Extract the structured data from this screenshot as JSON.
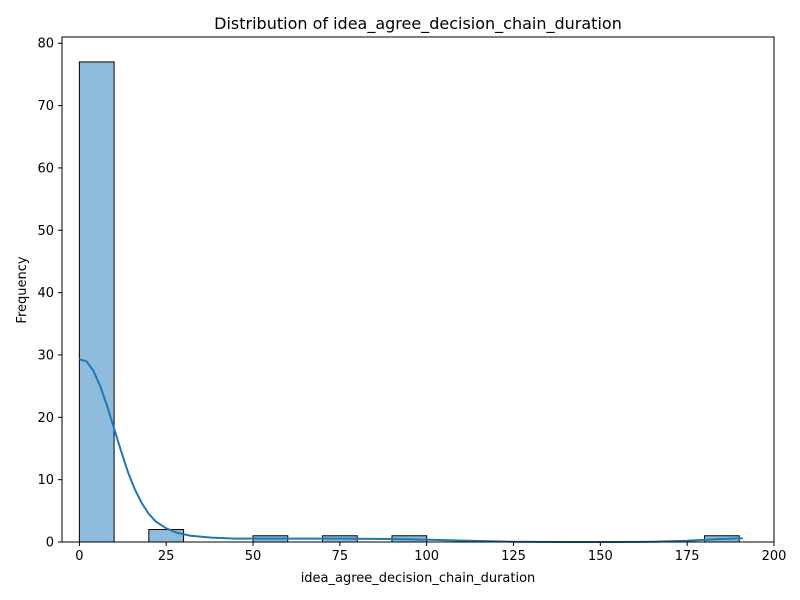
{
  "chart_data": {
    "type": "histogram",
    "title": "Distribution of idea_agree_decision_chain_duration",
    "xlabel": "idea_agree_decision_chain_duration",
    "ylabel": "Frequency",
    "xlim": [
      -5,
      200
    ],
    "ylim": [
      0,
      81
    ],
    "xticks": [
      0,
      25,
      50,
      75,
      100,
      125,
      150,
      175,
      200
    ],
    "yticks": [
      0,
      10,
      20,
      30,
      40,
      50,
      60,
      70,
      80
    ],
    "bins": [
      {
        "start": 0,
        "end": 10,
        "count": 77
      },
      {
        "start": 20,
        "end": 30,
        "count": 2
      },
      {
        "start": 50,
        "end": 60,
        "count": 1
      },
      {
        "start": 70,
        "end": 80,
        "count": 1
      },
      {
        "start": 90,
        "end": 100,
        "count": 1
      },
      {
        "start": 180,
        "end": 190,
        "count": 1
      }
    ],
    "kde": [
      [
        0,
        29.3
      ],
      [
        2,
        29.0
      ],
      [
        4,
        27.5
      ],
      [
        6,
        25.0
      ],
      [
        8,
        21.8
      ],
      [
        10,
        18.2
      ],
      [
        12,
        14.6
      ],
      [
        14,
        11.2
      ],
      [
        16,
        8.4
      ],
      [
        18,
        6.2
      ],
      [
        20,
        4.5
      ],
      [
        22,
        3.3
      ],
      [
        25,
        2.2
      ],
      [
        28,
        1.5
      ],
      [
        32,
        1.0
      ],
      [
        38,
        0.7
      ],
      [
        45,
        0.55
      ],
      [
        55,
        0.55
      ],
      [
        65,
        0.55
      ],
      [
        75,
        0.55
      ],
      [
        85,
        0.5
      ],
      [
        95,
        0.45
      ],
      [
        105,
        0.3
      ],
      [
        115,
        0.15
      ],
      [
        125,
        0.05
      ],
      [
        140,
        0.0
      ],
      [
        155,
        0.0
      ],
      [
        165,
        0.05
      ],
      [
        175,
        0.2
      ],
      [
        183,
        0.45
      ],
      [
        191,
        0.6
      ]
    ],
    "grid": false,
    "colors": {
      "bar_fill": "#8fbcdc",
      "bar_edge": "#000000",
      "kde_line": "#1f77b4"
    }
  }
}
